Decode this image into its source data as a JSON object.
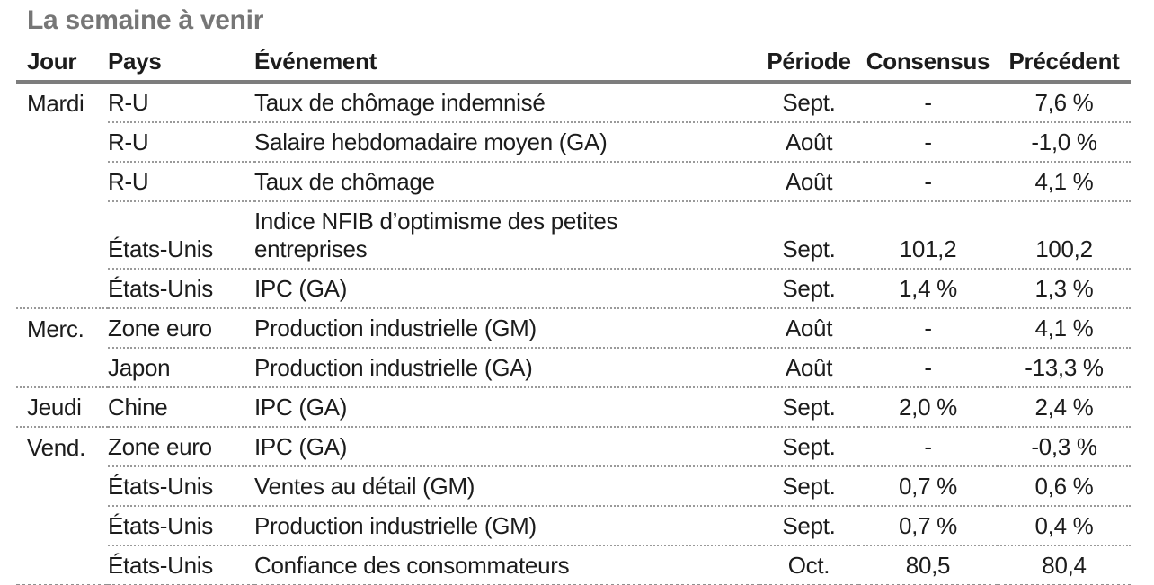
{
  "title": "La semaine à venir",
  "colors": {
    "title_gray": "#767676",
    "text": "#1c1c1c",
    "header_rule": "#7d7d7d",
    "row_rule": "#9a9a9a"
  },
  "table": {
    "headers": {
      "jour": "Jour",
      "pays": "Pays",
      "evenement": "Événement",
      "periode": "Période",
      "consensus": "Consensus",
      "precedent": "Précédent"
    },
    "rows": [
      {
        "jour": "Mardi",
        "pays": "R-U",
        "evenement": "Taux de chômage indemnisé",
        "periode": "Sept.",
        "consensus": "-",
        "precedent": "7,6 %"
      },
      {
        "jour": "",
        "pays": "R-U",
        "evenement": "Salaire hebdomadaire moyen (GA)",
        "periode": "Août",
        "consensus": "-",
        "precedent": "-1,0 %"
      },
      {
        "jour": "",
        "pays": "R-U",
        "evenement": "Taux de chômage",
        "periode": "Août",
        "consensus": "-",
        "precedent": "4,1 %"
      },
      {
        "jour": "",
        "pays": "États-Unis",
        "evenement": "Indice NFIB d’optimisme des petites entreprises",
        "periode": "Sept.",
        "consensus": "101,2",
        "precedent": "100,2"
      },
      {
        "jour": "",
        "pays": "États-Unis",
        "evenement": "IPC (GA)",
        "periode": "Sept.",
        "consensus": "1,4 %",
        "precedent": "1,3 %"
      },
      {
        "jour": "Merc.",
        "pays": "Zone euro",
        "evenement": "Production industrielle (GM)",
        "periode": "Août",
        "consensus": "-",
        "precedent": "4,1 %"
      },
      {
        "jour": "",
        "pays": "Japon",
        "evenement": "Production industrielle (GA)",
        "periode": "Août",
        "consensus": "-",
        "precedent": "-13,3 %"
      },
      {
        "jour": "Jeudi",
        "pays": "Chine",
        "evenement": "IPC (GA)",
        "periode": "Sept.",
        "consensus": "2,0 %",
        "precedent": "2,4 %"
      },
      {
        "jour": "Vend.",
        "pays": "Zone euro",
        "evenement": "IPC (GA)",
        "periode": "Sept.",
        "consensus": "-",
        "precedent": "-0,3 %"
      },
      {
        "jour": "",
        "pays": "États-Unis",
        "evenement": "Ventes au détail (GM)",
        "periode": "Sept.",
        "consensus": "0,7 %",
        "precedent": "0,6 %"
      },
      {
        "jour": "",
        "pays": "États-Unis",
        "evenement": "Production industrielle (GM)",
        "periode": "Sept.",
        "consensus": "0,7 %",
        "precedent": "0,4 %"
      },
      {
        "jour": "",
        "pays": "États-Unis",
        "evenement": "Confiance des consommateurs",
        "periode": "Oct.",
        "consensus": "80,5",
        "precedent": "80,4"
      }
    ]
  }
}
